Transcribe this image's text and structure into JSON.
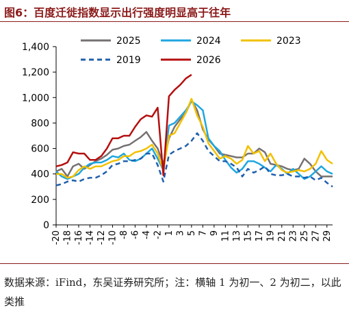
{
  "figure": {
    "title": "图6：百度迁徙指数显示出行强度明显高于往年",
    "source_note": "数据来源：iFind，东吴证券研究所；注：横轴 1 为初一、2 为初二，以此类推"
  },
  "chart_data": {
    "type": "line",
    "title": "",
    "xlabel": "",
    "ylabel": "",
    "ylim": [
      0,
      1400
    ],
    "yticks": [
      0,
      200,
      400,
      600,
      800,
      1000,
      1200,
      1400
    ],
    "ytick_labels": [
      "0",
      "200",
      "400",
      "600",
      "800",
      "1,000",
      "1,200",
      "1,400"
    ],
    "xlim": [
      -20,
      30
    ],
    "xticks": [
      -20,
      -18,
      -16,
      -14,
      -12,
      -10,
      -8,
      -6,
      -4,
      -2,
      1,
      3,
      5,
      7,
      9,
      11,
      13,
      15,
      17,
      19,
      21,
      23,
      25,
      27,
      29
    ],
    "xtick_labels": [
      "-20",
      "-18",
      "-16",
      "-14",
      "-12",
      "-10",
      "-8",
      "-6",
      "-4",
      "-2",
      "1",
      "3",
      "5",
      "7",
      "9",
      "11",
      "13",
      "15",
      "17",
      "19",
      "21",
      "23",
      "25",
      "27",
      "29"
    ],
    "grid": false,
    "legend_position": "top",
    "series": [
      {
        "name": "2025",
        "color": "#767171",
        "dash": "solid",
        "width": 2.5,
        "x": [
          -20,
          -19,
          -18,
          -17,
          -16,
          -15,
          -14,
          -13,
          -12,
          -11,
          -10,
          -9,
          -8,
          -7,
          -6,
          -5,
          -4,
          -3,
          -2,
          -1,
          1,
          2,
          3,
          4,
          5,
          6,
          7,
          8,
          9,
          10,
          11,
          12,
          13,
          14,
          15,
          16,
          17,
          18,
          19,
          20,
          21,
          22,
          23,
          24,
          25,
          26,
          27,
          28,
          29,
          30
        ],
        "y": [
          420,
          440,
          380,
          460,
          480,
          440,
          470,
          500,
          520,
          550,
          590,
          600,
          620,
          630,
          660,
          690,
          730,
          660,
          600,
          480,
          680,
          770,
          830,
          880,
          980,
          900,
          750,
          670,
          620,
          560,
          550,
          540,
          530,
          530,
          560,
          560,
          600,
          570,
          480,
          470,
          460,
          440,
          430,
          440,
          520,
          480,
          420,
          380,
          380,
          380
        ]
      },
      {
        "name": "2024",
        "color": "#1ea6e0",
        "dash": "solid",
        "width": 2.5,
        "x": [
          -20,
          -19,
          -18,
          -17,
          -16,
          -15,
          -14,
          -13,
          -12,
          -11,
          -10,
          -9,
          -8,
          -7,
          -6,
          -5,
          -4,
          -3,
          -2,
          -1,
          1,
          2,
          3,
          4,
          5,
          6,
          7,
          8,
          9,
          10,
          11,
          12,
          13,
          14,
          15,
          16,
          17,
          18,
          19,
          20,
          21,
          22,
          23,
          24,
          25,
          26,
          27,
          28,
          29,
          30
        ],
        "y": [
          420,
          380,
          360,
          380,
          400,
          450,
          480,
          490,
          490,
          510,
          540,
          530,
          560,
          510,
          500,
          520,
          560,
          600,
          520,
          430,
          780,
          800,
          850,
          900,
          970,
          940,
          900,
          680,
          620,
          580,
          510,
          450,
          410,
          440,
          500,
          500,
          480,
          450,
          420,
          470,
          440,
          400,
          440,
          400,
          360,
          380,
          420,
          460,
          420,
          400
        ]
      },
      {
        "name": "2023",
        "color": "#f2c000",
        "dash": "solid",
        "width": 2.5,
        "x": [
          -20,
          -19,
          -18,
          -17,
          -16,
          -15,
          -14,
          -13,
          -12,
          -11,
          -10,
          -9,
          -8,
          -7,
          -6,
          -5,
          -4,
          -3,
          -2,
          -1,
          1,
          2,
          3,
          4,
          5,
          6,
          7,
          8,
          9,
          10,
          11,
          12,
          13,
          14,
          15,
          16,
          17,
          18,
          19,
          20,
          21,
          22,
          23,
          24,
          25,
          26,
          27,
          28,
          29,
          30
        ],
        "y": [
          400,
          400,
          370,
          380,
          430,
          460,
          440,
          460,
          460,
          480,
          500,
          510,
          540,
          540,
          570,
          580,
          600,
          630,
          560,
          430,
          700,
          720,
          800,
          880,
          990,
          860,
          770,
          640,
          580,
          520,
          540,
          520,
          480,
          510,
          620,
          560,
          580,
          500,
          560,
          480,
          430,
          410,
          420,
          430,
          420,
          440,
          480,
          580,
          510,
          480
        ]
      },
      {
        "name": "2019",
        "color": "#1f5fad",
        "dash": "dashed",
        "width": 2.5,
        "x": [
          -20,
          -19,
          -18,
          -17,
          -16,
          -15,
          -14,
          -13,
          -12,
          -11,
          -10,
          -9,
          -8,
          -7,
          -6,
          -5,
          -4,
          -3,
          -2,
          -1,
          1,
          2,
          3,
          4,
          5,
          6,
          7,
          8,
          9,
          10,
          11,
          12,
          13,
          14,
          15,
          16,
          17,
          18,
          19,
          20,
          21,
          22,
          23,
          24,
          25,
          26,
          27,
          28,
          29,
          30
        ],
        "y": [
          310,
          320,
          340,
          350,
          340,
          360,
          370,
          370,
          390,
          420,
          470,
          480,
          500,
          500,
          510,
          520,
          560,
          560,
          470,
          340,
          550,
          580,
          600,
          620,
          660,
          720,
          660,
          580,
          540,
          500,
          500,
          480,
          450,
          380,
          440,
          410,
          430,
          460,
          400,
          390,
          390,
          400,
          380,
          380,
          370,
          380,
          350,
          370,
          330,
          300
        ]
      },
      {
        "name": "2026",
        "color": "#b50e0e",
        "dash": "solid",
        "width": 2.5,
        "x": [
          -20,
          -19,
          -18,
          -17,
          -16,
          -15,
          -14,
          -13,
          -12,
          -11,
          -10,
          -9,
          -8,
          -7,
          -6,
          -5,
          -4,
          -3,
          -2,
          -1,
          1,
          2,
          3,
          4,
          5
        ],
        "y": [
          460,
          470,
          490,
          570,
          560,
          560,
          510,
          510,
          540,
          600,
          680,
          680,
          700,
          700,
          770,
          830,
          860,
          850,
          920,
          390,
          1010,
          1060,
          1100,
          1150,
          1180
        ]
      }
    ]
  }
}
